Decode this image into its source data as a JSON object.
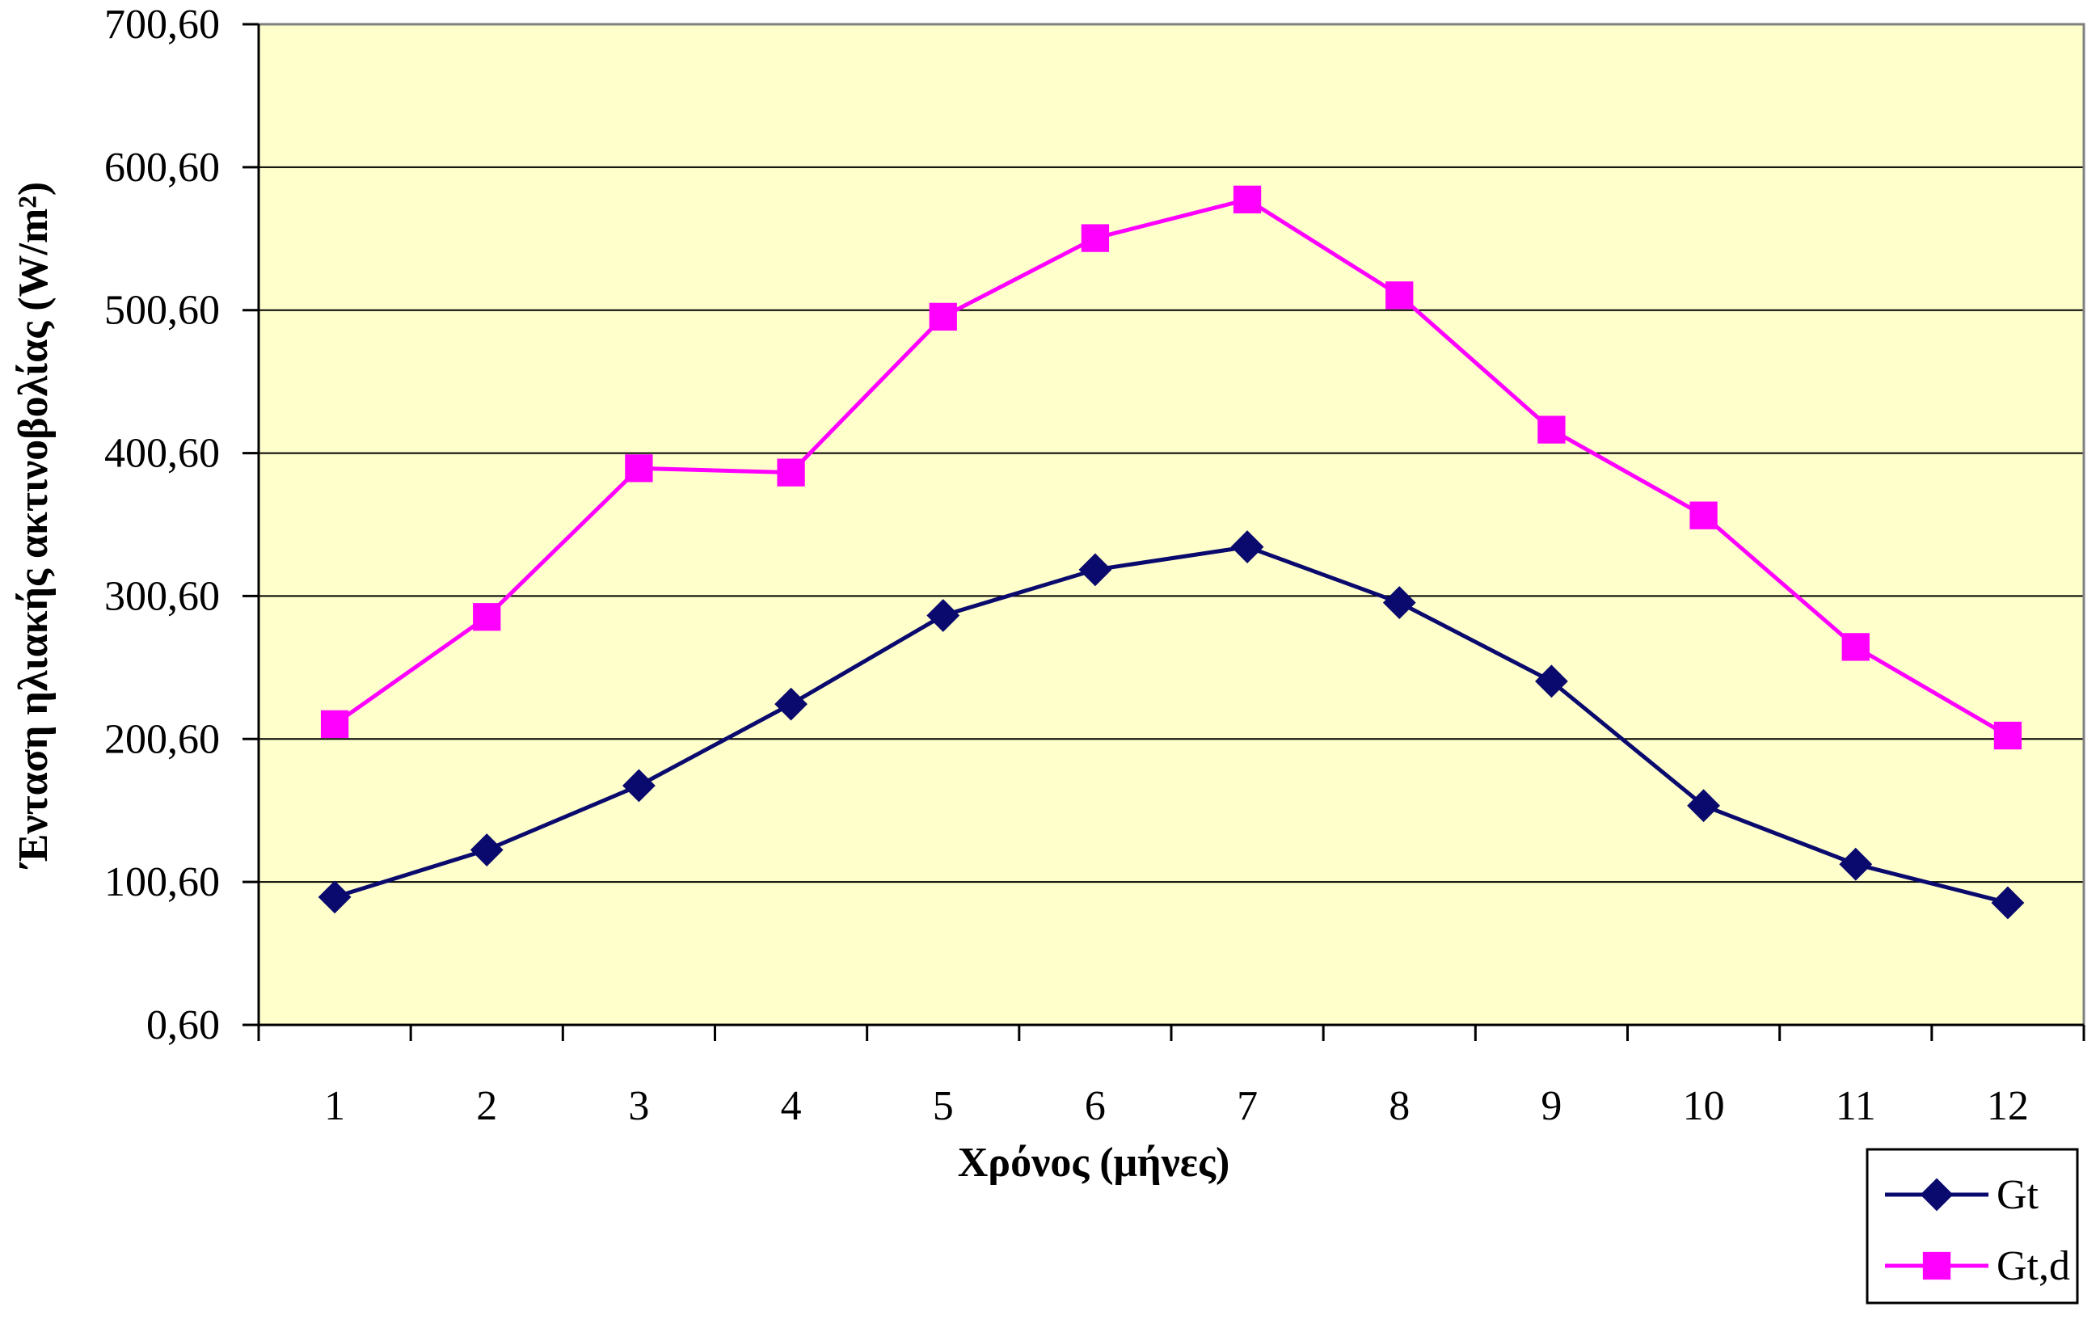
{
  "chart_data": {
    "type": "line",
    "title": "",
    "xlabel": "Χρόνος (μήνες)",
    "ylabel": "Ένταση ηλιακής ακτινοβολίας (W/m²)",
    "categories": [
      "1",
      "2",
      "3",
      "4",
      "5",
      "6",
      "7",
      "8",
      "9",
      "10",
      "11",
      "12"
    ],
    "yticks": [
      "0,60",
      "100,60",
      "200,60",
      "300,60",
      "400,60",
      "500,60",
      "600,60",
      "700,60"
    ],
    "ylim": [
      0.6,
      700.6
    ],
    "grid": true,
    "legend_position": "bottom-right",
    "plot_background": "#ffffcc",
    "series": [
      {
        "name": "Gt",
        "color": "#0a0a6e",
        "marker": "diamond",
        "values": [
          90,
          123,
          168,
          225,
          287,
          319,
          335,
          296,
          241,
          154,
          113,
          86
        ]
      },
      {
        "name": "Gt,d",
        "color": "#ff00ff",
        "marker": "square",
        "values": [
          211,
          286,
          390,
          387,
          496,
          551,
          578,
          511,
          417,
          357,
          265,
          203
        ]
      }
    ]
  }
}
